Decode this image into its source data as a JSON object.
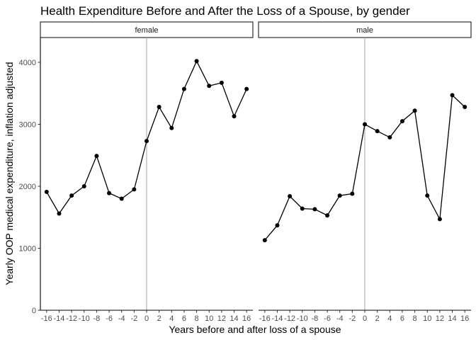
{
  "chart_data": {
    "type": "line",
    "title": "Health Expenditure Before and After the Loss of a Spouse, by gender",
    "xlabel": "Years before and after loss of a spouse",
    "ylabel": "Yearly OOP medical expenditure, inflation adjusted",
    "x_ticks": [
      -16,
      -14,
      -12,
      -10,
      -8,
      -6,
      -4,
      -2,
      0,
      2,
      4,
      6,
      8,
      10,
      12,
      14,
      16
    ],
    "x_tick_labels": [
      "-16",
      "-14",
      "-12",
      "-10",
      "-8",
      "-6",
      "-4",
      "-2",
      "0",
      "2",
      "4",
      "6",
      "8",
      "10",
      "12",
      "14",
      "16"
    ],
    "xlim": [
      -17,
      17
    ],
    "y_ticks": [
      0,
      1000,
      2000,
      3000,
      4000
    ],
    "y_tick_labels": [
      "0",
      "1000",
      "2000",
      "3000",
      "4000"
    ],
    "ylim": [
      0,
      4400
    ],
    "vline_x": 0,
    "grid": false,
    "facets": [
      {
        "label": "female",
        "x": [
          -16,
          -14,
          -12,
          -10,
          -8,
          -6,
          -4,
          -2,
          0,
          2,
          4,
          6,
          8,
          10,
          12,
          14,
          16
        ],
        "values": [
          1910,
          1560,
          1850,
          2000,
          2490,
          1890,
          1800,
          1950,
          2730,
          3280,
          2940,
          3570,
          4020,
          3620,
          3670,
          3130,
          3570
        ]
      },
      {
        "label": "male",
        "x": [
          -16,
          -14,
          -12,
          -10,
          -8,
          -6,
          -4,
          -2,
          0,
          2,
          4,
          6,
          8,
          10,
          12,
          14,
          16
        ],
        "values": [
          1130,
          1370,
          1840,
          1640,
          1630,
          1530,
          1850,
          1880,
          3000,
          2890,
          2790,
          3050,
          3220,
          1850,
          1470,
          3470,
          3280
        ]
      }
    ]
  }
}
